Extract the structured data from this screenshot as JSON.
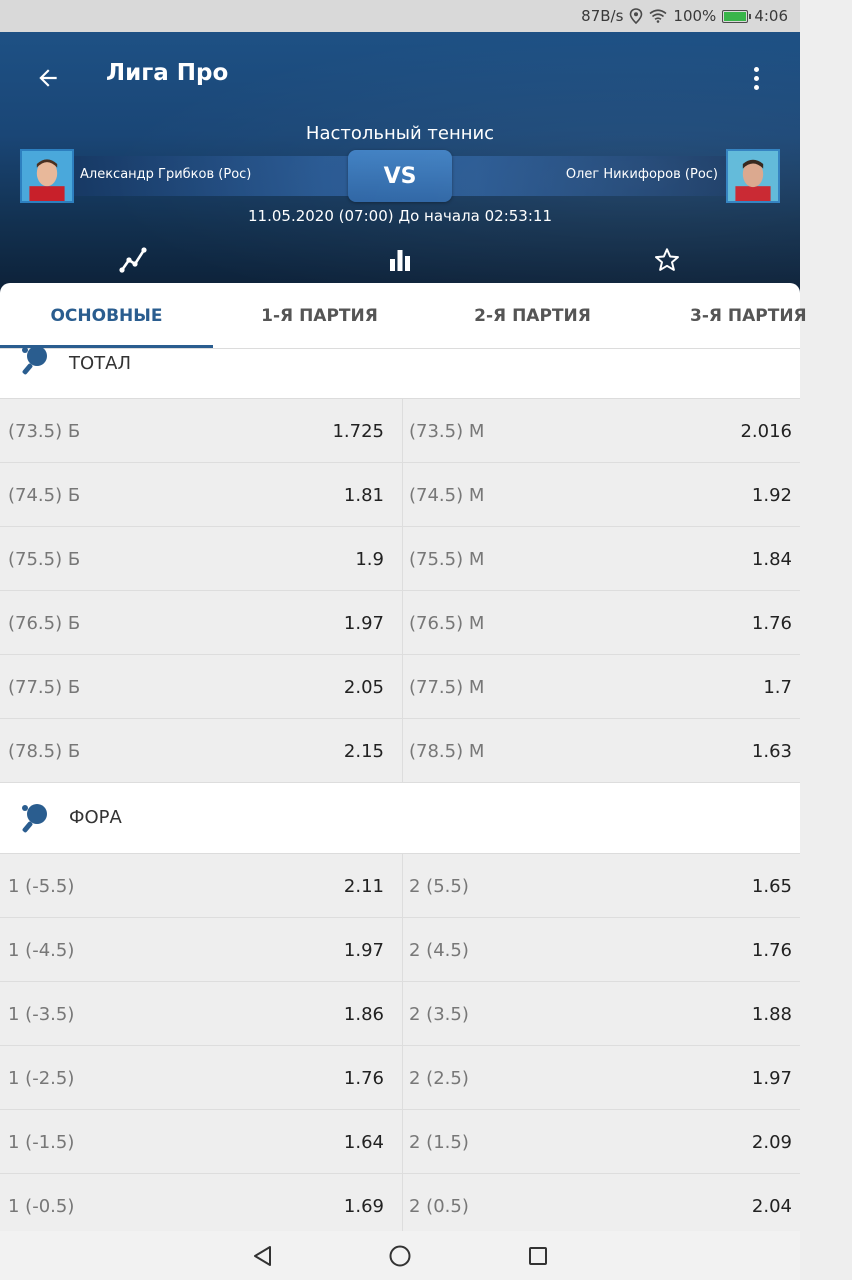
{
  "status_bar": {
    "speed": "87B/s",
    "battery_pct": "100%",
    "time": "4:06"
  },
  "app_bar": {
    "title": "Лига Про",
    "back_icon": "arrow-left-icon",
    "menu_icon": "more-vert-icon"
  },
  "match": {
    "sport": "Настольный теннис",
    "player1": "Александр Грибков (Рос)",
    "player2": "Олег Никифоров (Рос)",
    "vs": "VS",
    "datetime": "11.05.2020 (07:00)  До начала 02:53:11"
  },
  "header_icons": [
    "chart-line-icon",
    "bar-chart-icon",
    "star-icon"
  ],
  "tabs": [
    {
      "label": "ОСНОВНЫЕ",
      "active": true
    },
    {
      "label": "1-Я ПАРТИЯ",
      "active": false
    },
    {
      "label": "2-Я ПАРТИЯ",
      "active": false
    },
    {
      "label": "3-Я ПАРТИЯ",
      "active": false
    }
  ],
  "sections": {
    "total": {
      "label": "ТОТАЛ",
      "rows": [
        {
          "l_name": "(73.5) Б",
          "l_odd": "1.725",
          "r_name": "(73.5) М",
          "r_odd": "2.016"
        },
        {
          "l_name": "(74.5) Б",
          "l_odd": "1.81",
          "r_name": "(74.5) М",
          "r_odd": "1.92"
        },
        {
          "l_name": "(75.5) Б",
          "l_odd": "1.9",
          "r_name": "(75.5) М",
          "r_odd": "1.84"
        },
        {
          "l_name": "(76.5) Б",
          "l_odd": "1.97",
          "r_name": "(76.5) М",
          "r_odd": "1.76"
        },
        {
          "l_name": "(77.5) Б",
          "l_odd": "2.05",
          "r_name": "(77.5) М",
          "r_odd": "1.7"
        },
        {
          "l_name": "(78.5) Б",
          "l_odd": "2.15",
          "r_name": "(78.5) М",
          "r_odd": "1.63"
        }
      ]
    },
    "handicap": {
      "label": "ФОРА",
      "rows": [
        {
          "l_name": "1 (-5.5)",
          "l_odd": "2.11",
          "r_name": "2 (5.5)",
          "r_odd": "1.65"
        },
        {
          "l_name": "1 (-4.5)",
          "l_odd": "1.97",
          "r_name": "2 (4.5)",
          "r_odd": "1.76"
        },
        {
          "l_name": "1 (-3.5)",
          "l_odd": "1.86",
          "r_name": "2 (3.5)",
          "r_odd": "1.88"
        },
        {
          "l_name": "1 (-2.5)",
          "l_odd": "1.76",
          "r_name": "2 (2.5)",
          "r_odd": "1.97"
        },
        {
          "l_name": "1 (-1.5)",
          "l_odd": "1.64",
          "r_name": "2 (1.5)",
          "r_odd": "2.09"
        },
        {
          "l_name": "1 (-0.5)",
          "l_odd": "1.69",
          "r_name": "2 (0.5)",
          "r_odd": "2.04"
        }
      ]
    }
  },
  "colors": {
    "accent": "#2a5d8f",
    "header_top": "#1f5489",
    "header_bottom": "#0c1f35"
  }
}
